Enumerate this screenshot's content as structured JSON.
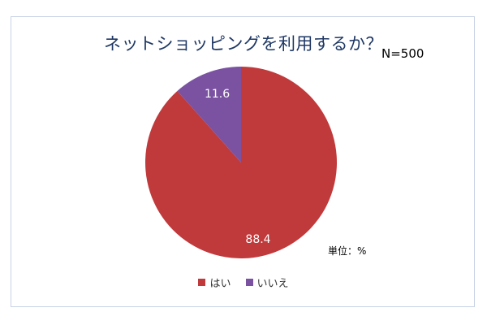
{
  "chart_data": {
    "type": "pie",
    "title": "ネットショッピングを利用するか？",
    "sample_size_label": "N=500",
    "unit_label": "単位：%",
    "categories": [
      "はい",
      "いいえ"
    ],
    "values": [
      88.4,
      11.6
    ],
    "value_labels": [
      "88.4",
      "11.6"
    ],
    "colors": [
      "#c0393b",
      "#7a52a1"
    ],
    "legend_position": "bottom",
    "start_angle_deg": 0,
    "direction": "clockwise"
  }
}
